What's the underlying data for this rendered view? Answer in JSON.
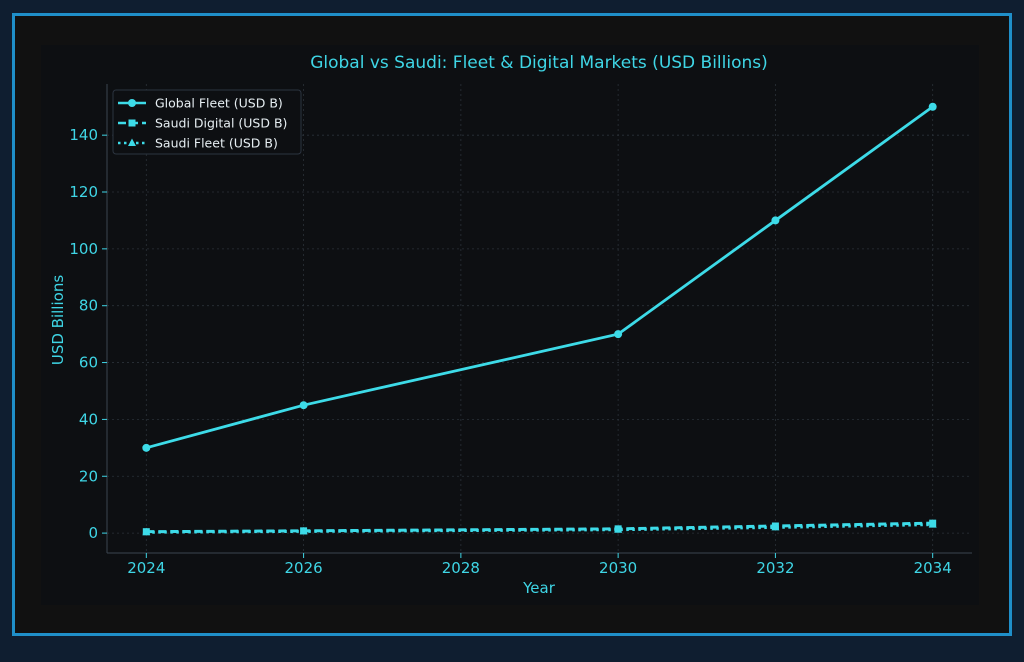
{
  "chart_data": {
    "type": "line",
    "title": "Global vs Saudi: Fleet & Digital Markets (USD Billions)",
    "xlabel": "Year",
    "ylabel": "USD Billions",
    "xlim": [
      2023.5,
      2034.5
    ],
    "ylim": [
      -7,
      158
    ],
    "xticks": [
      2024,
      2026,
      2028,
      2030,
      2032,
      2034
    ],
    "yticks": [
      0,
      20,
      40,
      60,
      80,
      100,
      120,
      140
    ],
    "grid": true,
    "legend_position": "top-left",
    "series": [
      {
        "name": "Global Fleet (USD B)",
        "x": [
          2024,
          2026,
          2030,
          2032,
          2034
        ],
        "values": [
          30,
          45,
          70,
          110,
          150
        ],
        "color": "#3ddbe8",
        "marker": "circle",
        "linestyle": "solid"
      },
      {
        "name": "Saudi Digital (USD B)",
        "x": [
          2024,
          2026,
          2030,
          2032,
          2034
        ],
        "values": [
          0.5,
          0.8,
          1.5,
          2.5,
          3.5
        ],
        "color": "#3ddbe8",
        "marker": "square",
        "linestyle": "dashed"
      },
      {
        "name": "Saudi Fleet (USD B)",
        "x": [
          2024,
          2026,
          2030,
          2032,
          2034
        ],
        "values": [
          0.3,
          0.6,
          1.2,
          2.0,
          3.0
        ],
        "color": "#3ddbe8",
        "marker": "triangle",
        "linestyle": "dotted"
      }
    ]
  }
}
